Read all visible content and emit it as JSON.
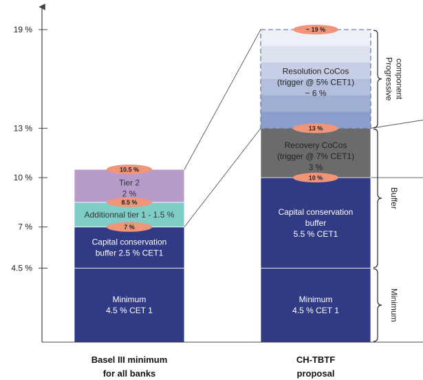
{
  "chart_data": {
    "type": "bar",
    "stacked": true,
    "ylim": [
      0,
      19.6
    ],
    "yticks": [
      {
        "value": 4.5,
        "label": "4.5 %"
      },
      {
        "value": 7,
        "label": "7 %"
      },
      {
        "value": 10,
        "label": "10 %"
      },
      {
        "value": 13,
        "label": "13 %"
      },
      {
        "value": 19,
        "label": "19 %"
      }
    ],
    "categories": [
      {
        "line1": "Basel III minimum",
        "line2": "for all banks"
      },
      {
        "line1": "CH-TBTF",
        "line2": "proposal"
      }
    ],
    "bars": [
      {
        "segments": [
          {
            "from": 0,
            "to": 4.5,
            "color": "#313a85",
            "text_color": "#ffffff",
            "lines": [
              "Minimum",
              "4.5 % CET 1"
            ]
          },
          {
            "from": 4.5,
            "to": 7,
            "color": "#313a85",
            "text_color": "#ffffff",
            "lines": [
              "Capital conservation",
              "buffer 2.5 % CET1"
            ]
          },
          {
            "from": 7,
            "to": 8.5,
            "color": "#7ecdc7",
            "text_color": "#333333",
            "lines": [
              "Additionnal tier 1 - 1.5 %"
            ]
          },
          {
            "from": 8.5,
            "to": 10.5,
            "color": "#b79bcb",
            "text_color": "#333333",
            "lines": [
              "Tier 2",
              "2 %"
            ]
          }
        ],
        "markers": [
          {
            "value": 7,
            "label": "7 %"
          },
          {
            "value": 8.5,
            "label": "8.5 %"
          },
          {
            "value": 10.5,
            "label": "10.5 %"
          }
        ]
      },
      {
        "segments": [
          {
            "from": 0,
            "to": 4.5,
            "color": "#313a85",
            "text_color": "#ffffff",
            "lines": [
              "Minimum",
              "4.5 % CET 1"
            ]
          },
          {
            "from": 4.5,
            "to": 10,
            "color": "#313a85",
            "text_color": "#ffffff",
            "lines": [
              "Capital conservation",
              "buffer",
              "5.5 % CET1"
            ]
          },
          {
            "from": 10,
            "to": 13,
            "color": "#6b6b6b",
            "text_color": "#222222",
            "lines": [
              "Recovery CoCos",
              "(trigger @ 7% CET1)",
              "3 %"
            ]
          },
          {
            "from": 13,
            "to": 19,
            "color": "gradient",
            "text_color": "#222222",
            "dashed": true,
            "lines": [
              "Resolution CoCos",
              "(trigger @ 5% CET1)",
              "~ 6 %"
            ]
          }
        ],
        "markers": [
          {
            "value": 10,
            "label": "10 %"
          },
          {
            "value": 13,
            "label": "13 %"
          },
          {
            "value": 19,
            "label": "~ 19 %"
          }
        ]
      }
    ],
    "braces": [
      {
        "from": 0,
        "to": 4.5,
        "label": "Minimum",
        "lines": [
          "Minimum"
        ]
      },
      {
        "from": 4.5,
        "to": 13,
        "label": "Buffer",
        "lines": [
          "Buffer"
        ]
      },
      {
        "from": 13,
        "to": 19,
        "label": "Progressive component",
        "lines": [
          "Progressive",
          "component"
        ]
      }
    ],
    "gradient_colors": [
      "#eef0f8",
      "#dde2ef",
      "#c6cfe6",
      "#b3bfdd",
      "#9fafd4",
      "#8c9ecb"
    ],
    "marker_color": "#f0947a"
  }
}
